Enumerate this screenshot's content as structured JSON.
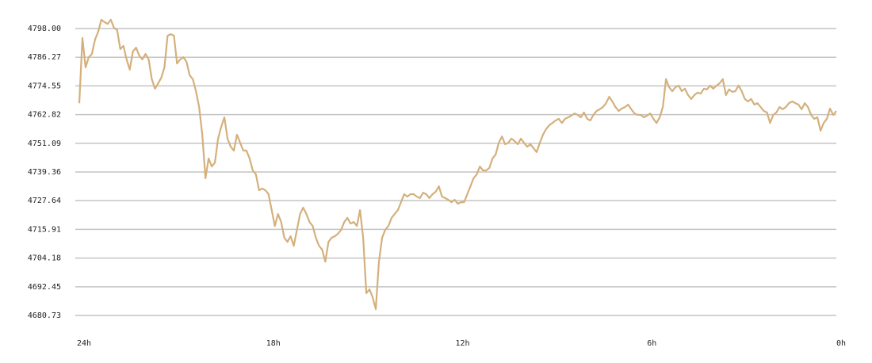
{
  "chart_data": {
    "type": "line",
    "x": [
      24,
      23.9,
      23.8,
      23.7,
      23.6,
      23.5,
      23.4,
      23.3,
      23.2,
      23.1,
      23,
      22.9,
      22.8,
      22.7,
      22.6,
      22.5,
      22.4,
      22.3,
      22.2,
      22.1,
      22,
      21.9,
      21.8,
      21.7,
      21.6,
      21.5,
      21.4,
      21.3,
      21.2,
      21.1,
      21,
      20.9,
      20.8,
      20.7,
      20.6,
      20.5,
      20.4,
      20.3,
      20.2,
      20.1,
      20,
      19.9,
      19.8,
      19.7,
      19.6,
      19.5,
      19.4,
      19.3,
      19.2,
      19.1,
      19,
      18.9,
      18.8,
      18.7,
      18.6,
      18.5,
      18.4,
      18.3,
      18.2,
      18.1,
      18,
      17.9,
      17.8,
      17.7,
      17.6,
      17.5,
      17.4,
      17.3,
      17.2,
      17.1,
      17,
      16.9,
      16.8,
      16.7,
      16.6,
      16.5,
      16.4,
      16.3,
      16.2,
      16.1,
      16,
      15.9,
      15.8,
      15.7,
      15.6,
      15.5,
      15.4,
      15.3,
      15.2,
      15.1,
      15,
      14.9,
      14.8,
      14.7,
      14.6,
      14.5,
      14.4,
      14.3,
      14.2,
      14.1,
      14,
      13.9,
      13.8,
      13.7,
      13.6,
      13.5,
      13.4,
      13.3,
      13.2,
      13.1,
      13,
      12.9,
      12.8,
      12.7,
      12.6,
      12.5,
      12.4,
      12.3,
      12.2,
      12.1,
      12,
      11.9,
      11.8,
      11.7,
      11.6,
      11.5,
      11.4,
      11.3,
      11.2,
      11.1,
      11,
      10.9,
      10.8,
      10.7,
      10.6,
      10.5,
      10.4,
      10.3,
      10.2,
      10.1,
      10,
      9.9,
      9.8,
      9.7,
      9.6,
      9.5,
      9.4,
      9.3,
      9.2,
      9.1,
      9,
      8.9,
      8.8,
      8.7,
      8.6,
      8.5,
      8.4,
      8.3,
      8.2,
      8.1,
      8,
      7.9,
      7.8,
      7.7,
      7.6,
      7.5,
      7.4,
      7.3,
      7.2,
      7.1,
      7,
      6.9,
      6.8,
      6.7,
      6.6,
      6.5,
      6.4,
      6.3,
      6.2,
      6.1,
      6,
      5.9,
      5.8,
      5.7,
      5.6,
      5.5,
      5.4,
      5.3,
      5.2,
      5.1,
      5,
      4.9,
      4.8,
      4.7,
      4.6,
      4.5,
      4.4,
      4.3,
      4.2,
      4.1,
      4,
      3.9,
      3.8,
      3.7,
      3.6,
      3.5,
      3.4,
      3.3,
      3.2,
      3.1,
      3,
      2.9,
      2.8,
      2.7,
      2.6,
      2.5,
      2.4,
      2.3,
      2.2,
      2.1,
      2,
      1.9,
      1.8,
      1.7,
      1.6,
      1.5,
      1.4,
      1.3,
      1.2,
      1.1,
      1,
      0.9,
      0.8,
      0.7,
      0.6,
      0.5,
      0.4,
      0.3,
      0.2,
      0.1,
      0
    ],
    "series": [
      {
        "color": "#d4b07c",
        "values": [
          4767.5,
          4794.1,
          4782.1,
          4786.3,
          4787.6,
          4793.5,
          4796.7,
          4801.6,
          4800.6,
          4799.9,
          4801.6,
          4798.3,
          4797.4,
          4789.6,
          4790.9,
          4785.4,
          4781.2,
          4788.6,
          4790.2,
          4787.0,
          4785.4,
          4787.6,
          4785.4,
          4777.3,
          4773.4,
          4775.6,
          4777.9,
          4782.1,
          4795.1,
          4795.7,
          4795.1,
          4783.7,
          4785.4,
          4786.3,
          4784.4,
          4778.9,
          4777.3,
          4772.4,
          4765.9,
          4754.6,
          4736.8,
          4744.9,
          4741.6,
          4743.2,
          4753.0,
          4757.8,
          4761.7,
          4753.0,
          4749.7,
          4748.1,
          4754.6,
          4751.3,
          4748.1,
          4748.1,
          4744.9,
          4740.0,
          4738.4,
          4731.9,
          4732.6,
          4731.9,
          4730.3,
          4723.8,
          4717.3,
          4722.2,
          4718.9,
          4712.5,
          4710.8,
          4713.1,
          4709.2,
          4715.7,
          4722.2,
          4724.8,
          4722.2,
          4718.9,
          4717.3,
          4712.5,
          4709.2,
          4707.6,
          4702.7,
          4710.8,
          4712.5,
          4713.1,
          4714.1,
          4715.7,
          4718.9,
          4720.6,
          4718.3,
          4718.9,
          4717.3,
          4723.8,
          4712.5,
          4689.8,
          4691.4,
          4688.2,
          4683.3,
          4702.7,
          4712.5,
          4715.7,
          4717.3,
          4720.6,
          4722.2,
          4723.8,
          4727.0,
          4730.3,
          4729.3,
          4730.3,
          4730.3,
          4729.3,
          4728.7,
          4730.9,
          4730.3,
          4728.7,
          4730.3,
          4731.3,
          4733.5,
          4729.3,
          4728.7,
          4728.0,
          4727.0,
          4728.0,
          4726.4,
          4727.0,
          4727.0,
          4730.3,
          4733.5,
          4736.8,
          4738.4,
          4741.6,
          4740.0,
          4740.0,
          4741.0,
          4744.9,
          4746.5,
          4751.3,
          4753.9,
          4750.7,
          4751.3,
          4753.0,
          4752.0,
          4750.7,
          4753.0,
          4751.3,
          4749.7,
          4750.7,
          4749.1,
          4747.5,
          4751.3,
          4754.6,
          4756.9,
          4758.5,
          4759.4,
          4760.4,
          4761.1,
          4759.4,
          4761.1,
          4761.7,
          4762.4,
          4763.3,
          4762.7,
          4761.7,
          4763.7,
          4761.1,
          4760.4,
          4762.7,
          4764.3,
          4765.0,
          4765.9,
          4767.5,
          4770.1,
          4768.2,
          4765.9,
          4764.3,
          4765.3,
          4765.9,
          4766.9,
          4765.0,
          4763.3,
          4762.7,
          4762.7,
          4761.7,
          4762.4,
          4763.3,
          4761.1,
          4759.4,
          4761.7,
          4765.9,
          4777.3,
          4774.0,
          4772.4,
          4774.0,
          4774.7,
          4772.4,
          4773.4,
          4770.8,
          4769.2,
          4770.8,
          4771.8,
          4771.4,
          4773.4,
          4773.1,
          4774.7,
          4773.4,
          4774.7,
          4775.6,
          4777.3,
          4770.8,
          4773.1,
          4772.1,
          4772.4,
          4774.7,
          4772.4,
          4769.2,
          4768.2,
          4769.2,
          4766.9,
          4767.5,
          4765.9,
          4764.3,
          4763.7,
          4759.4,
          4762.7,
          4763.7,
          4765.9,
          4765.0,
          4765.9,
          4767.5,
          4768.2,
          4767.5,
          4766.9,
          4765.0,
          4767.5,
          4765.9,
          4762.7,
          4761.1,
          4761.7,
          4756.2,
          4759.4,
          4761.1,
          4765.3,
          4762.7,
          4764.3
        ]
      }
    ],
    "xlim": [
      24,
      0
    ],
    "xticks": [
      {
        "value": 24,
        "label": "24h"
      },
      {
        "value": 18,
        "label": "18h"
      },
      {
        "value": 12,
        "label": "12h"
      },
      {
        "value": 6,
        "label": "6h"
      },
      {
        "value": 0,
        "label": "0h"
      }
    ],
    "ylim": [
      4678.46,
      4804.8
    ],
    "yticks": [
      {
        "value": 4798,
        "label": "4798.00"
      },
      4786.27,
      4774.55,
      4762.82,
      4751.09,
      4739.36,
      4727.64,
      4715.91,
      4704.18,
      4692.45,
      4680.73
    ],
    "grid": true
  }
}
